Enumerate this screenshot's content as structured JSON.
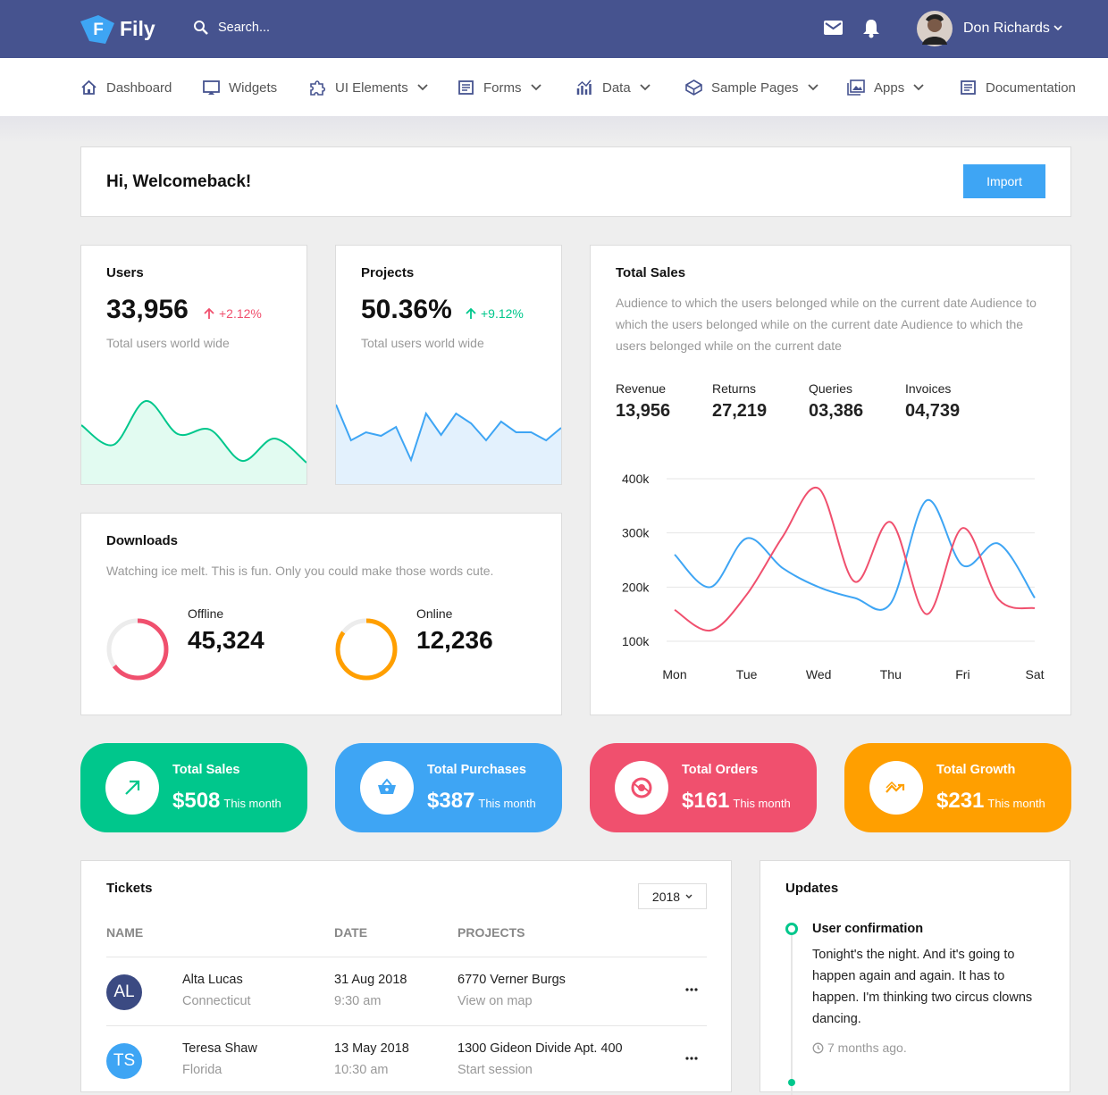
{
  "header": {
    "logo_letter": "F",
    "brand": "Fily",
    "search_placeholder": "Search...",
    "user_name": "Don Richards"
  },
  "nav": [
    {
      "label": "Dashboard",
      "has_menu": false
    },
    {
      "label": "Widgets",
      "has_menu": false
    },
    {
      "label": "UI Elements",
      "has_menu": true
    },
    {
      "label": "Forms",
      "has_menu": true
    },
    {
      "label": "Data",
      "has_menu": true
    },
    {
      "label": "Sample Pages",
      "has_menu": true
    },
    {
      "label": "Apps",
      "has_menu": true
    },
    {
      "label": "Documentation",
      "has_menu": false
    }
  ],
  "welcome": {
    "title": "Hi, Welcomeback!",
    "button": "Import"
  },
  "users": {
    "title": "Users",
    "value": "33,956",
    "change": "+2.12%",
    "change_color": "#f0506e",
    "subtitle": "Total users world wide",
    "sparkline": {
      "type": "line",
      "smooth": true,
      "color": "#00c78c",
      "fill": "#e2fbf1",
      "ylim": [
        0,
        110
      ],
      "values": [
        67,
        45,
        94,
        57,
        62,
        27,
        52,
        25
      ]
    }
  },
  "projects": {
    "title": "Projects",
    "value": "50.36%",
    "change": "+9.12%",
    "change_color": "#00c78c",
    "subtitle": "Total users world wide",
    "sparkline": {
      "type": "line",
      "smooth": false,
      "color": "#3ea5f4",
      "fill": "#e3f1fd",
      "ylim": [
        0,
        110
      ],
      "values": [
        90,
        50,
        59,
        55,
        65,
        28,
        80,
        56,
        80,
        69,
        50,
        71,
        59,
        59,
        50,
        64
      ]
    }
  },
  "downloads": {
    "title": "Downloads",
    "description": "Watching ice melt. This is fun. Only you could make those words cute.",
    "items": [
      {
        "label": "Offline",
        "value": "45,324",
        "progress": 65,
        "color": "#f0506e"
      },
      {
        "label": "Online",
        "value": "12,236",
        "progress": 85,
        "color": "#ff9f00"
      }
    ]
  },
  "total_sales": {
    "title": "Total Sales",
    "description": "Audience to which the users belonged while on the current date Audience to which the users belonged while on the current date Audience to which the users belonged while on the current date",
    "stats": [
      {
        "label": "Revenue",
        "value": "13,956"
      },
      {
        "label": "Returns",
        "value": "27,219"
      },
      {
        "label": "Queries",
        "value": "03,386"
      },
      {
        "label": "Invoices",
        "value": "04,739"
      }
    ],
    "chart": {
      "type": "line",
      "smooth": true,
      "grid": true,
      "x": [
        0,
        0.5,
        1,
        1.5,
        2,
        2.5,
        3,
        3.5,
        4,
        4.5,
        5
      ],
      "xlim": [
        0,
        5
      ],
      "xticks": [
        {
          "value": 0,
          "label": "Mon"
        },
        {
          "value": 1,
          "label": "Tue"
        },
        {
          "value": 2,
          "label": "Wed"
        },
        {
          "value": 3,
          "label": "Thu"
        },
        {
          "value": 4,
          "label": "Fri"
        },
        {
          "value": 5,
          "label": "Sat"
        }
      ],
      "ylim": [
        100000,
        400000
      ],
      "yticks": [
        {
          "value": 100000,
          "label": "100k"
        },
        {
          "value": 200000,
          "label": "200k"
        },
        {
          "value": 300000,
          "label": "300k"
        },
        {
          "value": 400000,
          "label": "400k"
        }
      ],
      "series": [
        {
          "color": "#3ea5f4",
          "values": [
            260000,
            200000,
            290000,
            235000,
            200000,
            180000,
            170000,
            360000,
            240000,
            280000,
            180000
          ]
        },
        {
          "color": "#f0506e",
          "values": [
            158000,
            120000,
            186000,
            293000,
            382000,
            210000,
            320000,
            150000,
            309000,
            177000,
            161000
          ]
        }
      ]
    }
  },
  "tiles": [
    {
      "title": "Total Sales",
      "value": "$508",
      "period": "This month",
      "color": "#00c78c"
    },
    {
      "title": "Total Purchases",
      "value": "$387",
      "period": "This month",
      "color": "#3ea5f4"
    },
    {
      "title": "Total Orders",
      "value": "$161",
      "period": "This month",
      "color": "#f0506e"
    },
    {
      "title": "Total Growth",
      "value": "$231",
      "period": "This month",
      "color": "#ff9f00"
    }
  ],
  "tickets": {
    "title": "Tickets",
    "year": "2018",
    "columns": [
      "NAME",
      "DATE",
      "PROJECTS"
    ],
    "rows": [
      {
        "initials": "AL",
        "name": "Alta Lucas",
        "location": "Connecticut",
        "date": "31 Aug 2018",
        "time": "9:30 am",
        "project": "6770 Verner Burgs",
        "action": "View on map",
        "color": "#3b4a82"
      },
      {
        "initials": "TS",
        "name": "Teresa Shaw",
        "location": "Florida",
        "date": "13 May 2018",
        "time": "10:30 am",
        "project": "1300 Gideon Divide Apt. 400",
        "action": "Start session",
        "color": "#3ea5f4"
      }
    ]
  },
  "updates": {
    "title": "Updates",
    "items": [
      {
        "title": "User confirmation",
        "text": "Tonight's the night. And it's going to happen again and again. It has to happen. I'm thinking two circus clowns dancing.",
        "time": "7 months ago."
      }
    ]
  }
}
